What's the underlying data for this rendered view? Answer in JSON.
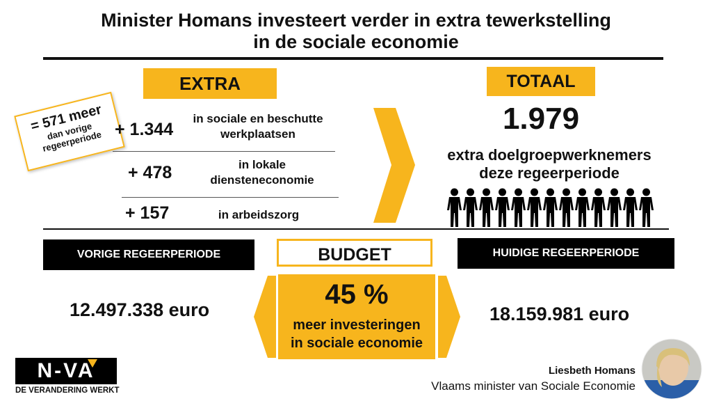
{
  "title": {
    "line1": "Minister Homans investeert verder in extra tewerkstelling",
    "line2": "in de sociale economie"
  },
  "extra": {
    "label": "EXTRA",
    "sticker": {
      "main": "= 571 meer",
      "sub1": "dan vorige",
      "sub2": "regeerperiode"
    },
    "rows": [
      {
        "value": "+ 1.344",
        "desc1": "in sociale en beschutte",
        "desc2": "werkplaatsen"
      },
      {
        "value": "+ 478",
        "desc1": "in lokale",
        "desc2": "diensteneconomie"
      },
      {
        "value": "+ 157",
        "desc1": "in arbeidszorg",
        "desc2": ""
      }
    ]
  },
  "totaal": {
    "label": "TOTAAL",
    "value": "1.979",
    "desc1": "extra doelgroepwerknemers",
    "desc2": "deze regeerperiode",
    "people_icon_count": 13
  },
  "budget": {
    "label": "BUDGET",
    "percent": "45 %",
    "desc1": "meer investeringen",
    "desc2": "in sociale economie"
  },
  "vorige": {
    "label": "VORIGE REGEERPERIODE",
    "amount": "12.497.338 euro"
  },
  "huidige": {
    "label": "HUIDIGE REGEERPERIODE",
    "amount": "18.159.981 euro"
  },
  "logo": {
    "text": "N-VA",
    "slogan": "DE VERANDERING WERKT"
  },
  "signature": {
    "name": "Liesbeth Homans",
    "role": "Vlaams minister van Sociale Economie"
  },
  "colors": {
    "accent": "#f7b51d",
    "dark": "#000000"
  },
  "icons": {
    "people": "person-icon",
    "arrow": "chevron-right-icon",
    "portrait": "portrait-photo"
  }
}
